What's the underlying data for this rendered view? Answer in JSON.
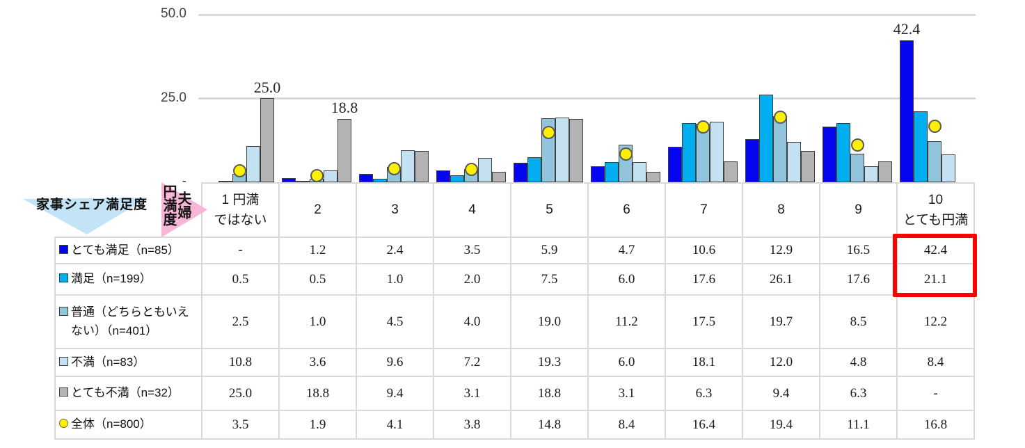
{
  "decor": {
    "left_axis_label": "家事シェア満足度",
    "top_axis_label": "夫婦円満度",
    "top_axis_label_col_right": "夫婦",
    "top_axis_label_col_left": "円満度",
    "left_triangle_color": "#c2e4f6",
    "arrow_color": "#f8b5d8"
  },
  "chart_data": {
    "type": "bar",
    "title": "",
    "xlabel": "夫婦円満度",
    "ylabel": "家事シェア満足度",
    "ylim": [
      0,
      50
    ],
    "grid": "horizontal",
    "legend_position": "table-rows",
    "categories": [
      "1 円満ではない",
      "2",
      "3",
      "4",
      "5",
      "6",
      "7",
      "8",
      "9",
      "10 とても円満"
    ],
    "yticks": [
      {
        "label": "50.0",
        "value": 50
      },
      {
        "label": "25.0",
        "value": 25
      },
      {
        "label": "-",
        "value": 0
      }
    ],
    "series": [
      {
        "name": "とても満足（n=85）",
        "color": "#0505f0",
        "marker": "square",
        "values": [
          null,
          1.2,
          2.4,
          3.5,
          5.9,
          4.7,
          10.6,
          12.9,
          16.5,
          42.4
        ]
      },
      {
        "name": "満足（n=199）",
        "color": "#00aeef",
        "marker": "square",
        "values": [
          0.5,
          0.5,
          1.0,
          2.0,
          7.5,
          6.0,
          17.6,
          26.1,
          17.6,
          21.1
        ]
      },
      {
        "name": "普通（どちらともいえない）（n=401）",
        "color": "#92c5dc",
        "marker": "square",
        "values": [
          2.5,
          1.0,
          4.5,
          4.0,
          19.0,
          11.2,
          17.5,
          19.7,
          8.5,
          12.2
        ]
      },
      {
        "name": "不満（n=83）",
        "color": "#c3e1f1",
        "marker": "square",
        "values": [
          10.8,
          3.6,
          9.6,
          7.2,
          19.3,
          6.0,
          18.1,
          12.0,
          4.8,
          8.4
        ]
      },
      {
        "name": "とても不満（n=32）",
        "color": "#b3b3b3",
        "marker": "square",
        "values": [
          25.0,
          18.8,
          9.4,
          3.1,
          18.8,
          3.1,
          6.3,
          9.4,
          6.3,
          null
        ]
      },
      {
        "name": "全体（n=800）",
        "color": "#fff000",
        "marker": "circle",
        "render": "point",
        "values": [
          3.5,
          1.9,
          4.1,
          3.8,
          14.8,
          8.4,
          16.4,
          19.4,
          11.1,
          16.8
        ]
      }
    ],
    "annotations": [
      {
        "text": "25.0",
        "col": 0,
        "series": 4
      },
      {
        "text": "18.8",
        "col": 1,
        "series": 4
      },
      {
        "text": "42.4",
        "col": 9,
        "series": 0
      }
    ]
  },
  "table": {
    "header_cells": [
      [
        "1 円満",
        "ではない"
      ],
      [
        "2"
      ],
      [
        "3"
      ],
      [
        "4"
      ],
      [
        "5"
      ],
      [
        "6"
      ],
      [
        "7"
      ],
      [
        "8"
      ],
      [
        "9"
      ],
      [
        "10",
        "とても円満"
      ]
    ],
    "rows": [
      {
        "label": "とても満足（n=85）",
        "cells": [
          "-",
          "1.2",
          "2.4",
          "3.5",
          "5.9",
          "4.7",
          "10.6",
          "12.9",
          "16.5",
          "42.4"
        ]
      },
      {
        "label": "満足（n=199）",
        "cells": [
          "0.5",
          "0.5",
          "1.0",
          "2.0",
          "7.5",
          "6.0",
          "17.6",
          "26.1",
          "17.6",
          "21.1"
        ]
      },
      {
        "label": "普通（どちらともいえない）（n=401）",
        "cells": [
          "2.5",
          "1.0",
          "4.5",
          "4.0",
          "19.0",
          "11.2",
          "17.5",
          "19.7",
          "8.5",
          "12.2"
        ]
      },
      {
        "label": "不満（n=83）",
        "cells": [
          "10.8",
          "3.6",
          "9.6",
          "7.2",
          "19.3",
          "6.0",
          "18.1",
          "12.0",
          "4.8",
          "8.4"
        ]
      },
      {
        "label": "とても不満（n=32）",
        "cells": [
          "25.0",
          "18.8",
          "9.4",
          "3.1",
          "18.8",
          "3.1",
          "6.3",
          "9.4",
          "6.3",
          "-"
        ]
      },
      {
        "label": "全体（n=800）",
        "cells": [
          "3.5",
          "1.9",
          "4.1",
          "3.8",
          "14.8",
          "8.4",
          "16.4",
          "19.4",
          "11.1",
          "16.8"
        ]
      }
    ],
    "highlight": {
      "col": 9,
      "rows": [
        0,
        1
      ],
      "color": "#fe0000"
    }
  }
}
